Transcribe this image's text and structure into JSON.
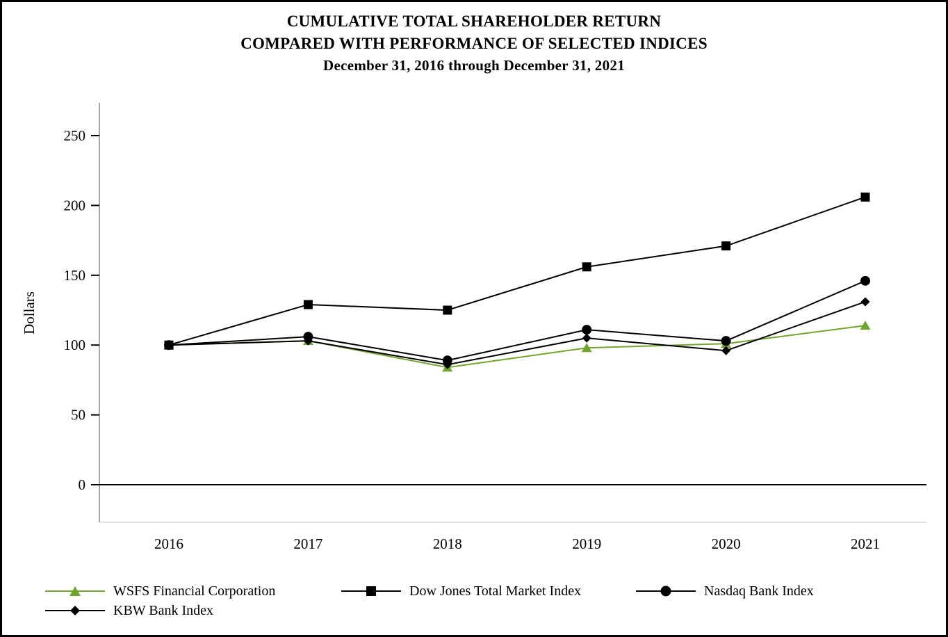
{
  "title_lines": [
    "CUMULATIVE TOTAL SHAREHOLDER RETURN",
    "COMPARED WITH PERFORMANCE OF SELECTED INDICES",
    "December 31, 2016 through December 31, 2021"
  ],
  "chart_data": {
    "type": "line",
    "x": [
      "2016",
      "2017",
      "2018",
      "2019",
      "2020",
      "2021"
    ],
    "xlabel": "",
    "ylabel": "Dollars",
    "ylim": [
      0,
      250
    ],
    "yticks": [
      0,
      50,
      100,
      150,
      200,
      250
    ],
    "grid": false,
    "legend_position": "bottom",
    "series": [
      {
        "name": "WSFS Financial Corporation",
        "marker": "triangle",
        "color": "#72a52d",
        "values": [
          100,
          103,
          84,
          98,
          101,
          114
        ]
      },
      {
        "name": "Dow Jones Total Market Index",
        "marker": "square",
        "color": "#000000",
        "values": [
          100,
          129,
          125,
          156,
          171,
          206
        ]
      },
      {
        "name": "Nasdaq Bank Index",
        "marker": "circle",
        "color": "#000000",
        "values": [
          100,
          106,
          89,
          111,
          103,
          146
        ]
      },
      {
        "name": "KBW Bank Index",
        "marker": "diamond",
        "color": "#000000",
        "values": [
          100,
          103,
          86,
          105,
          96,
          131
        ]
      }
    ]
  }
}
